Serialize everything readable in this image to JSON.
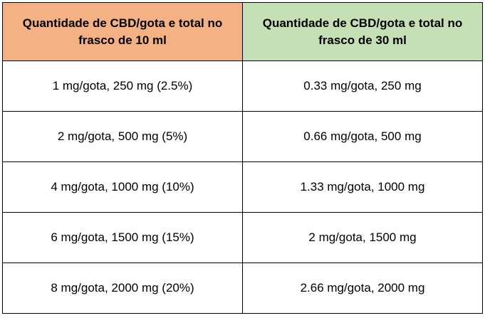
{
  "table": {
    "header": [
      "Quantidade de CBD/gota e total no frasco de 10 ml",
      "Quantidade de CBD/gota e total no frasco de 30 ml"
    ],
    "rows": [
      [
        "1 mg/gota, 250 mg (2.5%)",
        "0.33 mg/gota, 250 mg"
      ],
      [
        "2 mg/gota, 500 mg (5%)",
        "0.66 mg/gota, 500 mg"
      ],
      [
        "4 mg/gota, 1000 mg (10%)",
        "1.33 mg/gota, 1000 mg"
      ],
      [
        "6 mg/gota, 1500 mg (15%)",
        "2 mg/gota, 1500 mg"
      ],
      [
        "8 mg/gota, 2000 mg (20%)",
        "2.66 mg/gota, 2000 mg"
      ]
    ]
  }
}
